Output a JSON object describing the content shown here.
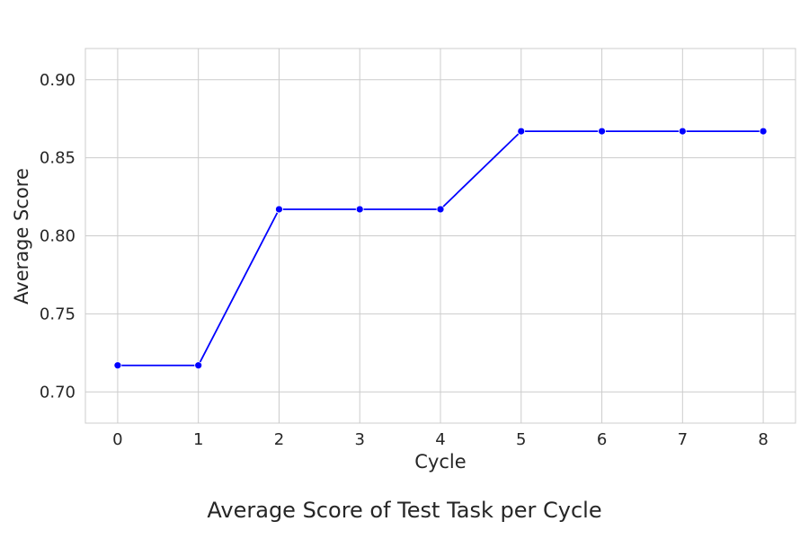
{
  "chart_data": {
    "type": "line",
    "title": "Average Score of Test Task per Cycle",
    "xlabel": "Cycle",
    "ylabel": "Average Score",
    "x": [
      0,
      1,
      2,
      3,
      4,
      5,
      6,
      7,
      8
    ],
    "series": [
      {
        "values": [
          0.717,
          0.717,
          0.817,
          0.817,
          0.817,
          0.867,
          0.867,
          0.867,
          0.867
        ],
        "color": "#0000ff"
      }
    ],
    "xlim": [
      -0.4,
      8.4
    ],
    "ylim": [
      0.68,
      0.92
    ],
    "xticks": [
      "0",
      "1",
      "2",
      "3",
      "4",
      "5",
      "6",
      "7",
      "8"
    ],
    "yticks": [
      "0.70",
      "0.75",
      "0.80",
      "0.85",
      "0.90"
    ],
    "grid": true,
    "legend": "none",
    "colors": {
      "line": "#0000ff",
      "grid": "#cccccc",
      "text": "#262626"
    }
  }
}
